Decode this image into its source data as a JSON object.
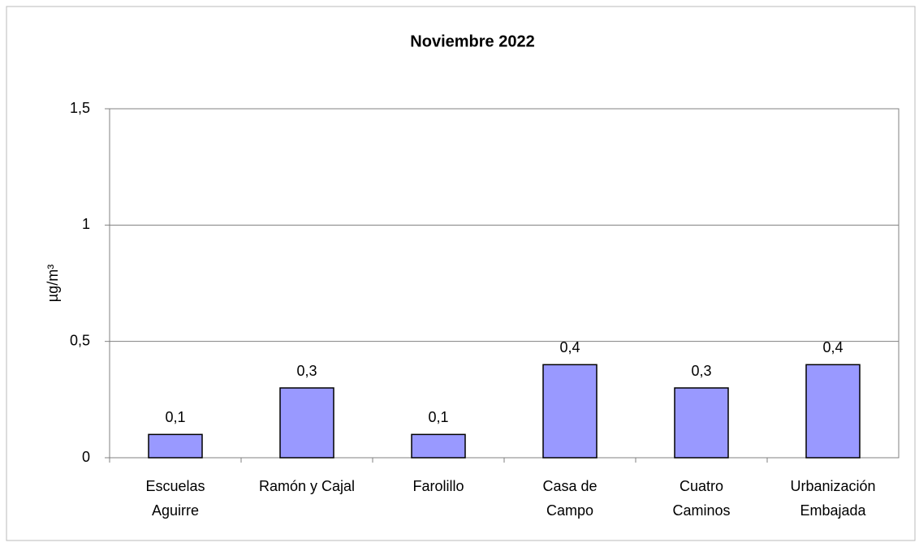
{
  "chart_data": {
    "type": "bar",
    "title": "Noviembre 2022",
    "y_label": "µg/m³",
    "categories": [
      "Escuelas\nAguirre",
      "Ramón y Cajal",
      "Farolillo",
      "Casa de\nCampo",
      "Cuatro\nCaminos",
      "Urbanización\nEmbajada"
    ],
    "values": [
      0.1,
      0.3,
      0.1,
      0.4,
      0.3,
      0.4
    ],
    "value_labels": [
      "0,1",
      "0,3",
      "0,1",
      "0,4",
      "0,3",
      "0,4"
    ],
    "color": "#9999ff",
    "ylim": [
      0,
      1.5
    ],
    "yticks": [
      0,
      {
        "value": 0.5,
        "label": "0,5"
      },
      1,
      {
        "value": 1.5,
        "label": "1,5"
      }
    ],
    "grid": true
  }
}
